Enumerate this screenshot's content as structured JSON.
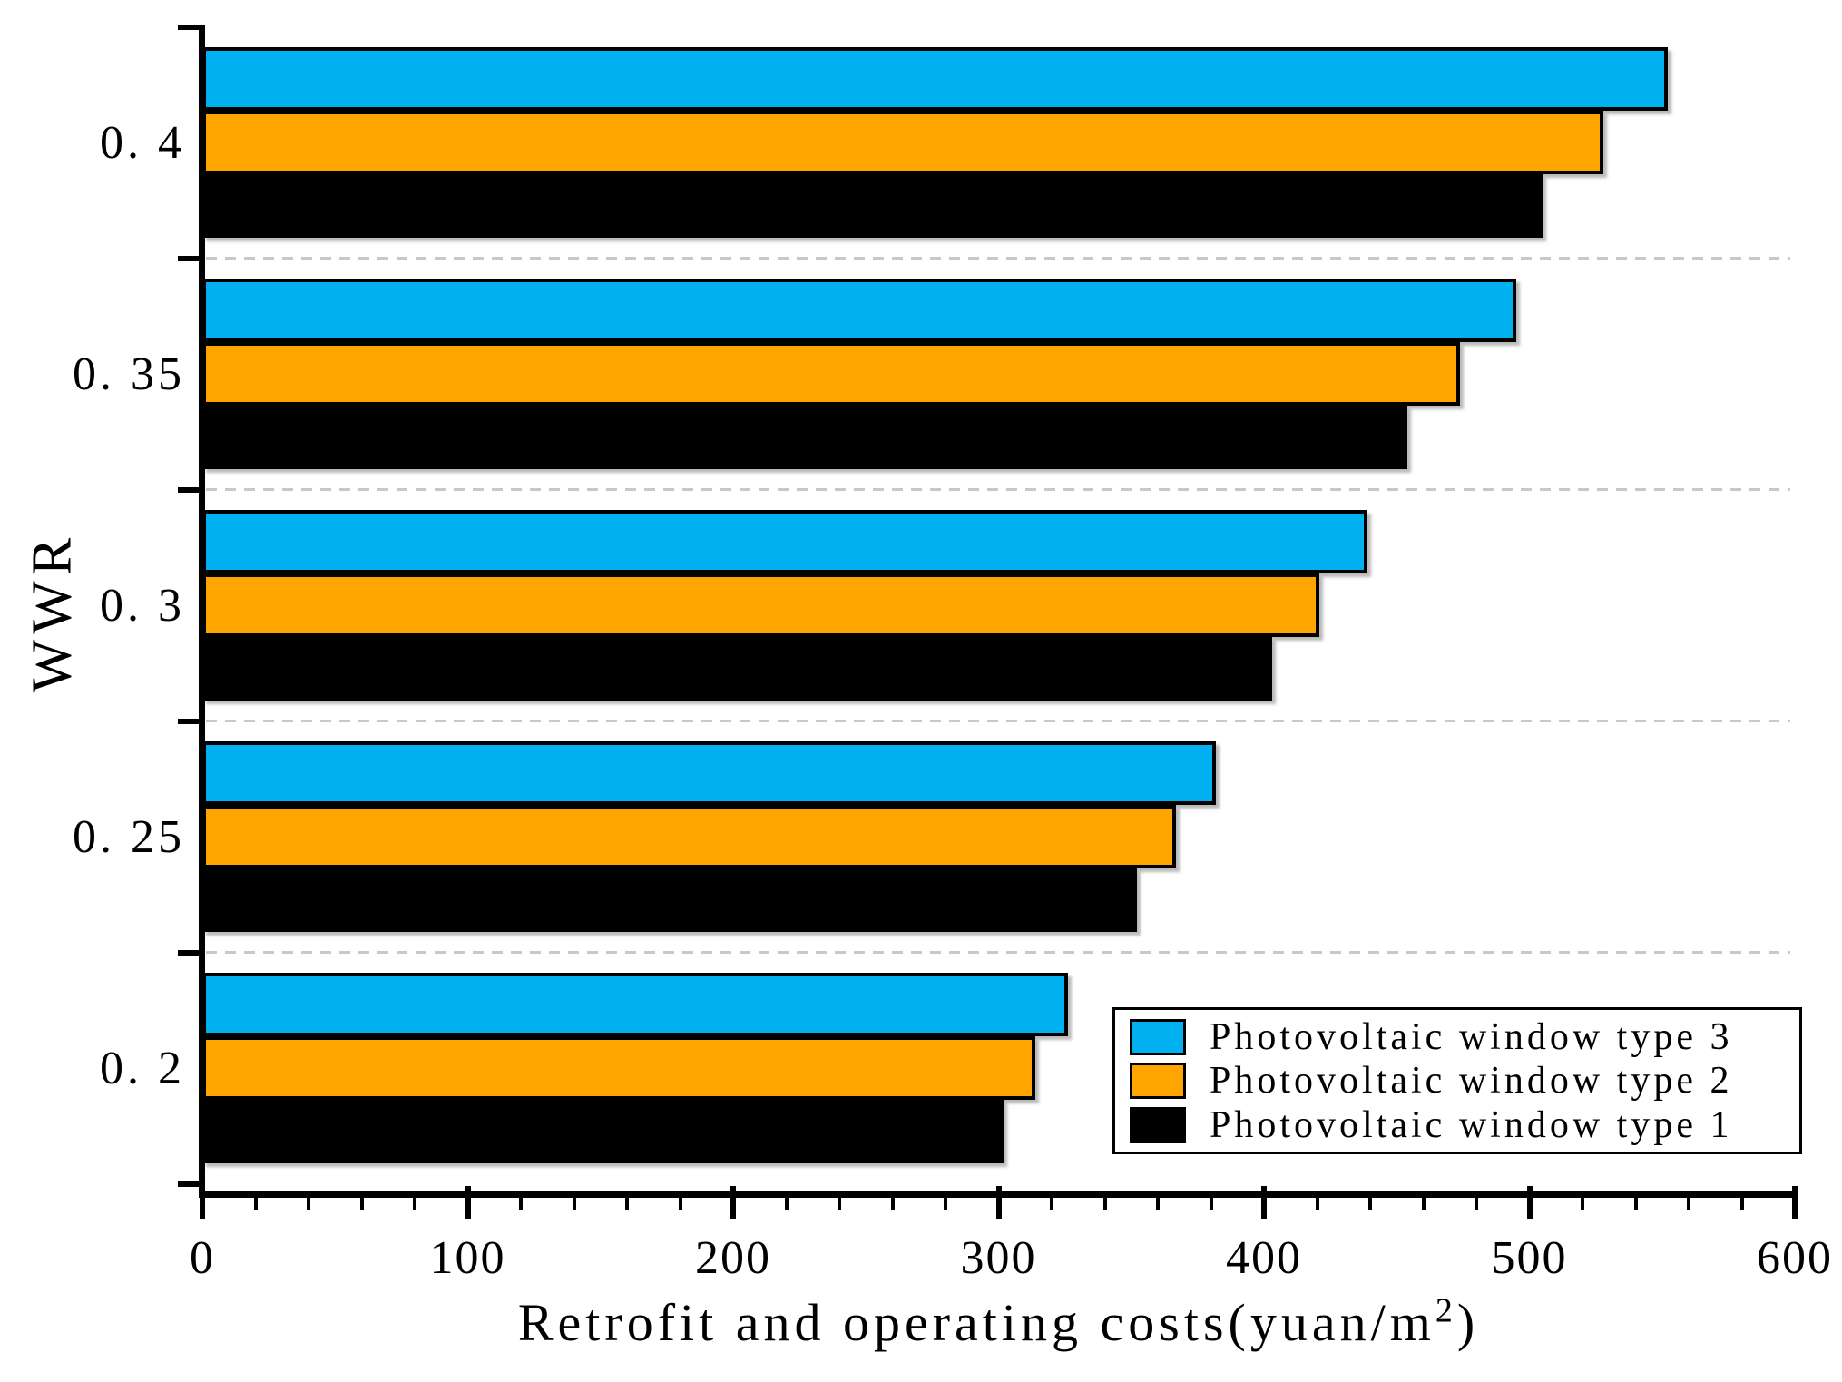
{
  "chart_data": {
    "type": "bar",
    "orientation": "horizontal",
    "title": "",
    "xlabel": "Retrofit and operating costs(yuan/m²)",
    "xlabel_parts": {
      "pre": "Retrofit and operating costs(yuan/m",
      "sup": "2",
      "post": ")"
    },
    "ylabel": "WWR",
    "categories": [
      0.2,
      0.25,
      0.3,
      0.35,
      0.4
    ],
    "category_tick_labels": [
      "0. 2",
      "0. 25",
      "0. 3",
      "0. 35",
      "0. 4"
    ],
    "series": [
      {
        "name": "Photovoltaic window type 3",
        "color": "#00B0F0",
        "values": [
          326,
          382,
          439,
          495,
          552
        ]
      },
      {
        "name": "Photovoltaic window type 2",
        "color": "#FFA500",
        "values": [
          314,
          367,
          421,
          474,
          528
        ]
      },
      {
        "name": "Photovoltaic window type 1",
        "color": "#000000",
        "values": [
          302,
          352,
          403,
          454,
          505
        ]
      }
    ],
    "xlim": [
      0,
      600
    ],
    "x_major_ticks": [
      0,
      100,
      200,
      300,
      400,
      500,
      600
    ],
    "x_minor_tick_step": 20,
    "grid": "dashed horizontal lines between category groups",
    "gridline_color": "#C8C8C8",
    "bar_edge_color": "#000000",
    "legend_position": "lower right"
  }
}
